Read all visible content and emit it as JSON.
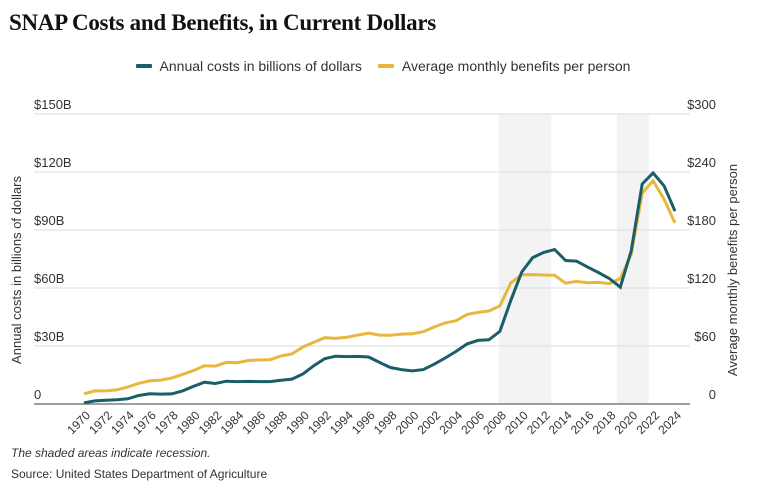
{
  "title": "SNAP Costs and Benefits, in Current Dollars",
  "note": "The shaded areas indicate recession.",
  "source": "Source: United States Department of Agriculture",
  "colors": {
    "costs": "#1a5e68",
    "benefits": "#e8b83e",
    "recession": "#f3f3f3",
    "grid": "#dddddd",
    "axis": "#666666"
  },
  "chart_data": {
    "type": "line",
    "title": "SNAP Costs and Benefits, in Current Dollars",
    "xlabel": "",
    "ylabel": "Annual costs in billions of dollars",
    "y2label": "Average monthly benefits per person",
    "ylim": [
      0,
      150
    ],
    "y2lim": [
      0,
      300
    ],
    "grid": true,
    "legend_position": "top-center",
    "y_ticks": [
      "0",
      "$30B",
      "$60B",
      "$90B",
      "$120B",
      "$150B"
    ],
    "y_tick_values": [
      0,
      30,
      60,
      90,
      120,
      150
    ],
    "y2_ticks": [
      "0",
      "$60",
      "$120",
      "$180",
      "$240",
      "$300"
    ],
    "y2_tick_values": [
      0,
      60,
      120,
      180,
      240,
      300
    ],
    "x_ticks": [
      "1970",
      "1972",
      "1974",
      "1976",
      "1978",
      "1980",
      "1982",
      "1984",
      "1986",
      "1988",
      "1990",
      "1992",
      "1994",
      "1996",
      "1998",
      "2000",
      "2002",
      "2004",
      "2006",
      "2008",
      "2010",
      "2012",
      "2014",
      "2016",
      "2018",
      "2020",
      "2022",
      "2024"
    ],
    "recessions": [
      [
        2007.9,
        2012.7
      ],
      [
        2018.7,
        2021.6
      ]
    ],
    "x": [
      1970,
      1971,
      1972,
      1973,
      1974,
      1975,
      1976,
      1977,
      1978,
      1979,
      1980,
      1981,
      1982,
      1983,
      1984,
      1985,
      1986,
      1987,
      1988,
      1989,
      1990,
      1991,
      1992,
      1993,
      1994,
      1995,
      1996,
      1997,
      1998,
      1999,
      2000,
      2001,
      2002,
      2003,
      2004,
      2005,
      2006,
      2007,
      2008,
      2009,
      2010,
      2011,
      2012,
      2013,
      2014,
      2015,
      2016,
      2017,
      2018,
      2019,
      2020,
      2021,
      2022,
      2023,
      2024
    ],
    "series": [
      {
        "name": "Annual costs in billions of dollars",
        "axis": "left",
        "color": "#1a5e68",
        "values": [
          0.6,
          1.6,
          1.9,
          2.2,
          2.7,
          4.4,
          5.3,
          5.1,
          5.2,
          6.8,
          9.1,
          11.3,
          10.6,
          11.8,
          11.6,
          11.7,
          11.6,
          11.6,
          12.3,
          12.9,
          15.5,
          19.8,
          23.5,
          24.7,
          24.5,
          24.6,
          24.3,
          21.5,
          18.9,
          17.8,
          17.1,
          17.8,
          20.6,
          23.8,
          27.2,
          31.1,
          32.9,
          33.2,
          37.6,
          53.6,
          68.3,
          75.7,
          78.4,
          79.9,
          74.2,
          73.9,
          70.9,
          68.0,
          64.9,
          60.4,
          79.2,
          113.8,
          119.5,
          112.8,
          99.8
        ]
      },
      {
        "name": "Average monthly benefits per person",
        "axis": "right",
        "color": "#e8b83e",
        "values": [
          10.6,
          13.6,
          13.5,
          14.6,
          17.6,
          21.4,
          23.9,
          24.7,
          26.8,
          30.6,
          34.5,
          39.5,
          39.2,
          43.0,
          42.7,
          45.0,
          45.5,
          45.8,
          49.8,
          51.7,
          59.0,
          63.9,
          68.6,
          67.9,
          69.0,
          71.3,
          73.2,
          71.3,
          71.1,
          72.3,
          72.6,
          74.8,
          79.7,
          83.9,
          86.2,
          92.7,
          94.8,
          96.2,
          101.5,
          125.3,
          133.8,
          133.9,
          133.4,
          133.1,
          125.0,
          126.8,
          125.4,
          125.8,
          124.5,
          129.8,
          155.0,
          218.2,
          230.9,
          211.9,
          187.2
        ]
      }
    ]
  }
}
